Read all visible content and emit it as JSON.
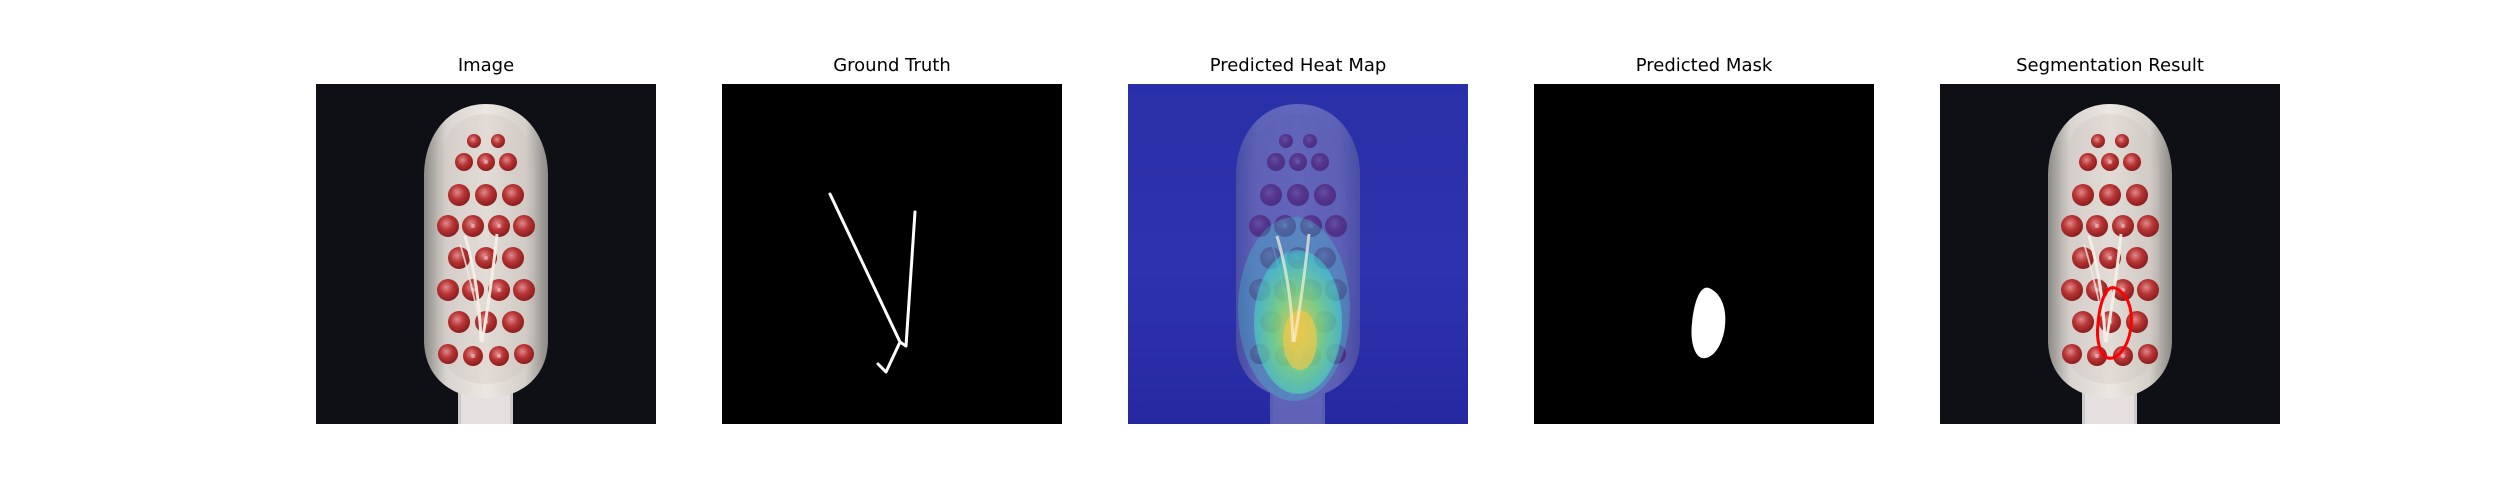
{
  "figure": {
    "background": "#ffffff",
    "panels": [
      {
        "title": "Image"
      },
      {
        "title": "Ground Truth"
      },
      {
        "title": "Predicted Heat Map"
      },
      {
        "title": "Predicted Mask"
      },
      {
        "title": "Segmentation Result"
      }
    ]
  },
  "colors": {
    "photo_background": "#0f1016",
    "mask_background": "#000000",
    "mask_foreground": "#ffffff",
    "heatmap_background": "#2a28a0",
    "heatmap_hot": "#e5d24a",
    "segmentation_contour": "#ff0000",
    "bristle_red": "#a92a2a"
  }
}
